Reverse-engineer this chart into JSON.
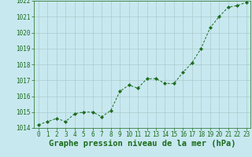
{
  "x": [
    0,
    1,
    2,
    3,
    4,
    5,
    6,
    7,
    8,
    9,
    10,
    11,
    12,
    13,
    14,
    15,
    16,
    17,
    18,
    19,
    20,
    21,
    22,
    23
  ],
  "y": [
    1014.2,
    1014.4,
    1014.6,
    1014.4,
    1014.9,
    1015.0,
    1015.0,
    1014.7,
    1015.1,
    1016.3,
    1016.7,
    1016.5,
    1017.1,
    1017.1,
    1016.8,
    1016.8,
    1017.5,
    1018.1,
    1019.0,
    1020.3,
    1021.0,
    1021.6,
    1021.7,
    1021.9
  ],
  "ylim": [
    1014,
    1022
  ],
  "yticks": [
    1014,
    1015,
    1016,
    1017,
    1018,
    1019,
    1020,
    1021,
    1022
  ],
  "xticks": [
    0,
    1,
    2,
    3,
    4,
    5,
    6,
    7,
    8,
    9,
    10,
    11,
    12,
    13,
    14,
    15,
    16,
    17,
    18,
    19,
    20,
    21,
    22,
    23
  ],
  "xlabel": "Graphe pression niveau de la mer (hPa)",
  "line_color": "#1a6b1a",
  "marker": "D",
  "marker_size": 2.2,
  "background_color": "#c8e8f0",
  "grid_color": "#aacccc",
  "tick_color": "#1a6b1a",
  "label_color": "#1a6b1a",
  "tick_fontsize": 5.5,
  "xlabel_fontsize": 7.5
}
